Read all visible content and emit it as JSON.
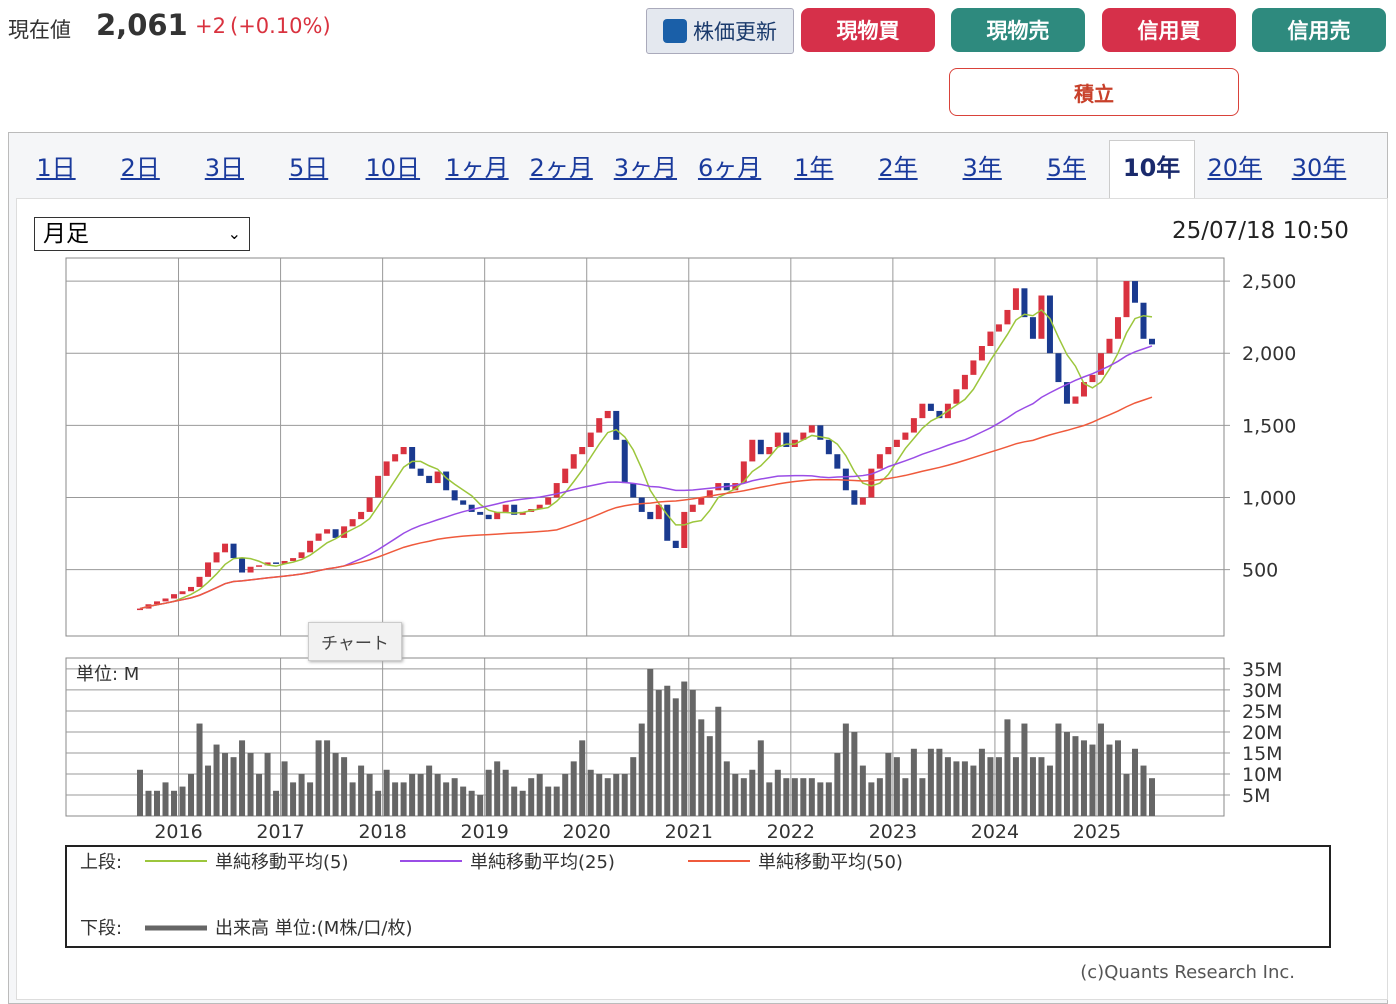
{
  "header": {
    "price_label": "現在値",
    "price": "2,061",
    "change": "+2",
    "change_pct": "(+0.10%)",
    "buttons": [
      "株価更新",
      "現物買",
      "現物売",
      "信用買",
      "信用売"
    ],
    "tsumitate": "積立"
  },
  "tabs": [
    "1日",
    "2日",
    "3日",
    "5日",
    "10日",
    "1ヶ月",
    "2ヶ月",
    "3ヶ月",
    "6ヶ月",
    "1年",
    "2年",
    "3年",
    "5年",
    "10年",
    "20年",
    "30年"
  ],
  "selected_tab": "10年",
  "interval": "月足",
  "timestamp": "25/07/18 10:50",
  "tooltip": "チャート",
  "chart_data": {
    "type": "candlestick",
    "x_labels": [
      "2016",
      "2017",
      "2018",
      "2019",
      "2020",
      "2021",
      "2022",
      "2023",
      "2024",
      "2025"
    ],
    "close": [
      230,
      260,
      280,
      300,
      330,
      350,
      380,
      450,
      550,
      620,
      680,
      580,
      480,
      520,
      530,
      550,
      540,
      560,
      580,
      620,
      700,
      750,
      780,
      720,
      800,
      850,
      900,
      1000,
      1150,
      1250,
      1300,
      1350,
      1200,
      1150,
      1100,
      1180,
      1050,
      980,
      950,
      900,
      880,
      850,
      900,
      950,
      880,
      900,
      920,
      950,
      1000,
      1100,
      1200,
      1300,
      1350,
      1450,
      1550,
      1600,
      1400,
      1100,
      1000,
      900,
      850,
      950,
      700,
      650,
      900,
      950,
      1000,
      1050,
      1100,
      1050,
      1100,
      1250,
      1400,
      1300,
      1350,
      1450,
      1350,
      1400,
      1450,
      1500,
      1400,
      1300,
      1200,
      1050,
      950,
      1000,
      1200,
      1300,
      1350,
      1400,
      1450,
      1550,
      1650,
      1600,
      1550,
      1650,
      1750,
      1850,
      1950,
      2050,
      2150,
      2200,
      2300,
      2450,
      2250,
      2100,
      2400,
      2000,
      1800,
      1650,
      1700,
      1800,
      1850,
      2000,
      2100,
      2250,
      2500,
      2350,
      2100,
      2061
    ],
    "up_color": "#d9323f",
    "down_color": "#1a3a8f",
    "ylim": [
      40,
      2660
    ],
    "yticks": [
      {
        "value": 500,
        "label": "500"
      },
      {
        "value": 1000,
        "label": "1,000"
      },
      {
        "value": 1500,
        "label": "1,500"
      },
      {
        "value": 2000,
        "label": "2,000"
      },
      {
        "value": 2500,
        "label": "2,500"
      }
    ],
    "moving_averages": [
      {
        "name": "単純移動平均(5)",
        "color": "#9cc63c"
      },
      {
        "name": "単純移動平均(25)",
        "color": "#9a4de6"
      },
      {
        "name": "単純移動平均(50)",
        "color": "#ef5a3c"
      }
    ],
    "volume": {
      "unit_label": "単位: M",
      "color": "#666666",
      "values": [
        11,
        6,
        6,
        8,
        6,
        7,
        10,
        22,
        12,
        17,
        15,
        14,
        18,
        15,
        10,
        15,
        6,
        13,
        8,
        10,
        8,
        18,
        18,
        15,
        14,
        8,
        12,
        10,
        6,
        11,
        8,
        8,
        10,
        10,
        12,
        10,
        8,
        9,
        7,
        6,
        5,
        11,
        13,
        11,
        7,
        6,
        9,
        10,
        7,
        7,
        10,
        13,
        18,
        11,
        10,
        9,
        10,
        10,
        14,
        22,
        35,
        30,
        31,
        28,
        32,
        30,
        23,
        19,
        26,
        13,
        10,
        9,
        11,
        18,
        8,
        11,
        9,
        9,
        9,
        9,
        8,
        8,
        15,
        22,
        20,
        12,
        8,
        9,
        15,
        14,
        9,
        16,
        9,
        16,
        16,
        14,
        13,
        13,
        12,
        16,
        14,
        14,
        23,
        14,
        22,
        14,
        14,
        12,
        22,
        20,
        19,
        18,
        17,
        22,
        17,
        18,
        10,
        16,
        12,
        9
      ],
      "ylim": [
        0,
        37.6
      ],
      "yticks": [
        {
          "value": 5,
          "label": "5M"
        },
        {
          "value": 10,
          "label": "10M"
        },
        {
          "value": 15,
          "label": "15M"
        },
        {
          "value": 20,
          "label": "20M"
        },
        {
          "value": 25,
          "label": "25M"
        },
        {
          "value": 30,
          "label": "30M"
        },
        {
          "value": 35,
          "label": "35M"
        }
      ]
    },
    "legend_upper": "上段:",
    "legend_lower": "下段:",
    "legend_volume": "出来高 単位:(M株/口/枚)",
    "credit": "(c)Quants Research Inc."
  }
}
